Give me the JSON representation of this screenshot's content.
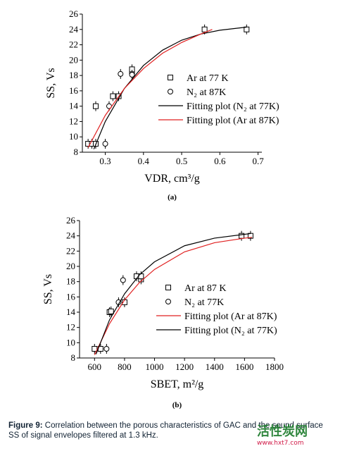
{
  "chart_data": [
    {
      "type": "scatter",
      "panel_label": "(a)",
      "x_label": "VDR, cm³/g",
      "y_label": "SS, Vs",
      "legend": "center right",
      "xlim": [
        0.24,
        0.71
      ],
      "xticks": [
        0.3,
        0.4,
        0.5,
        0.6,
        0.7
      ],
      "ylim": [
        8,
        26
      ],
      "yticks": [
        8,
        10,
        12,
        14,
        16,
        18,
        20,
        22,
        24,
        26
      ],
      "series": [
        {
          "name": "Ar at 77 K",
          "marker": "square",
          "color": "#000000",
          "x": [
            0.255,
            0.265,
            0.275,
            0.275,
            0.32,
            0.335,
            0.37,
            0.37,
            0.56,
            0.67
          ],
          "values": [
            9.1,
            9.1,
            9.1,
            14,
            15.3,
            15.3,
            18.5,
            18.8,
            24,
            24
          ]
        },
        {
          "name": "N₂ at 87K",
          "marker": "circle",
          "color": "#000000",
          "x": [
            0.3,
            0.31,
            0.34,
            0.37
          ],
          "values": [
            9.1,
            14,
            18.2,
            18.1
          ]
        },
        {
          "name": "Fitting plot (N₂ at 77K)",
          "marker": "line",
          "color": "#000000",
          "x": [
            0.27,
            0.3,
            0.35,
            0.4,
            0.45,
            0.5,
            0.55,
            0.6,
            0.67
          ],
          "values": [
            8.4,
            12,
            16.3,
            19.3,
            21.3,
            22.6,
            23.4,
            23.9,
            24.3
          ]
        },
        {
          "name": "Fitting plot (Ar at 87K)",
          "marker": "line",
          "color": "#e02020",
          "x": [
            0.255,
            0.3,
            0.35,
            0.4,
            0.45,
            0.5,
            0.55,
            0.58
          ],
          "values": [
            8.6,
            12.8,
            16.3,
            18.9,
            20.9,
            22.3,
            23.4,
            24
          ]
        }
      ]
    },
    {
      "type": "scatter",
      "panel_label": "(b)",
      "x_label": "SBET, m²/g",
      "y_label": "SS, Vs",
      "legend": "center right",
      "xlim": [
        500,
        1800
      ],
      "xticks": [
        600,
        800,
        1000,
        1200,
        1400,
        1600,
        1800
      ],
      "ylim": [
        8,
        26
      ],
      "yticks": [
        8,
        10,
        12,
        14,
        16,
        18,
        20,
        22,
        24,
        26
      ],
      "series": [
        {
          "name": "Ar at 87 K",
          "marker": "square",
          "color": "#000000",
          "x": [
            600,
            640,
            700,
            710,
            800,
            880,
            910,
            910,
            1580,
            1640
          ],
          "values": [
            9.2,
            9.2,
            14,
            14.1,
            15.3,
            18.7,
            18.3,
            18.7,
            24,
            24
          ]
        },
        {
          "name": "N₂ at 77K",
          "marker": "circle",
          "color": "#000000",
          "x": [
            680,
            760,
            790
          ],
          "values": [
            9.2,
            15.3,
            18.2
          ]
        },
        {
          "name": "Fitting plot (Ar at 87K)",
          "marker": "line",
          "color": "#e02020",
          "x": [
            600,
            700,
            800,
            900,
            1000,
            1200,
            1400,
            1600,
            1650
          ],
          "values": [
            8.4,
            12.5,
            15.6,
            17.9,
            19.6,
            21.9,
            23.1,
            23.7,
            23.8
          ]
        },
        {
          "name": "Fitting plot (N₂ at 77K)",
          "marker": "line",
          "color": "#000000",
          "x": [
            610,
            700,
            800,
            900,
            1000,
            1200,
            1400,
            1600,
            1640
          ],
          "values": [
            8.5,
            13,
            16.4,
            18.9,
            20.6,
            22.7,
            23.7,
            24.2,
            24.3
          ]
        }
      ]
    }
  ],
  "caption": {
    "label": "Figure 9:",
    "text": "Correlation between the porous characteristics of GAC and the sound surface SS of signal envelopes filtered at 1.3 kHz."
  },
  "watermark": {
    "name": "活性炭网",
    "url": "www.hxt7.com"
  }
}
